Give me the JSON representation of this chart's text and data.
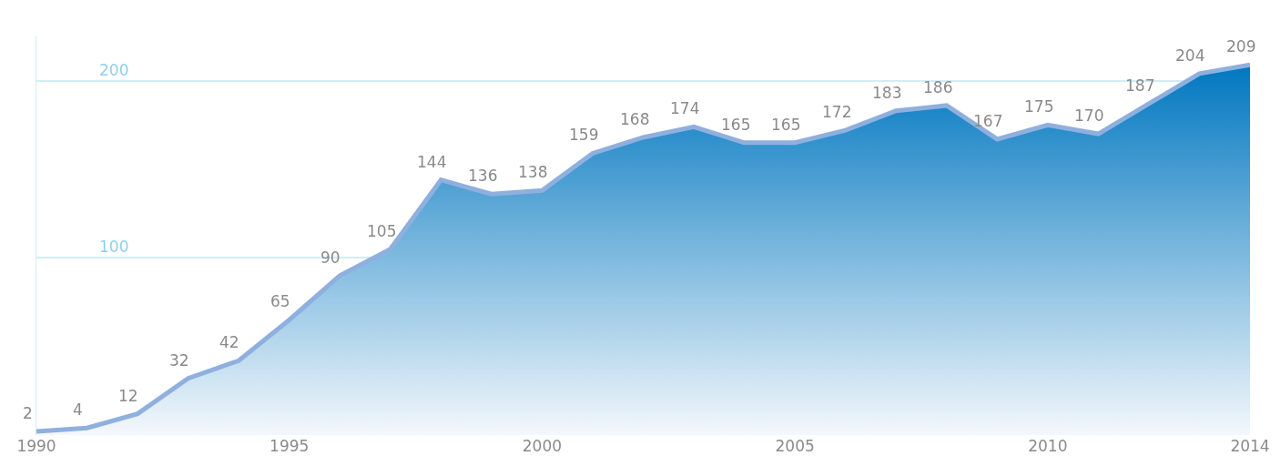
{
  "chart_data": {
    "type": "area",
    "x": [
      1990,
      1991,
      1992,
      1993,
      1994,
      1995,
      1996,
      1997,
      1998,
      1999,
      2000,
      2001,
      2002,
      2003,
      2004,
      2005,
      2006,
      2007,
      2008,
      2009,
      2010,
      2011,
      2012,
      2013,
      2014
    ],
    "series": [
      {
        "color": "#0077c0",
        "values": [
          2,
          4,
          12,
          32,
          42,
          65,
          90,
          105,
          144,
          136,
          138,
          159,
          168,
          174,
          165,
          165,
          172,
          183,
          186,
          167,
          175,
          170,
          187,
          204,
          209
        ]
      }
    ],
    "xlim": [
      1990,
      2014
    ],
    "xticks": [
      1990,
      1995,
      2000,
      2005,
      2010,
      2014
    ],
    "ylim": [
      0,
      225
    ],
    "yticks": [
      100,
      200
    ],
    "grid": "y",
    "data_labels": true,
    "legend": false,
    "marker": "none"
  }
}
